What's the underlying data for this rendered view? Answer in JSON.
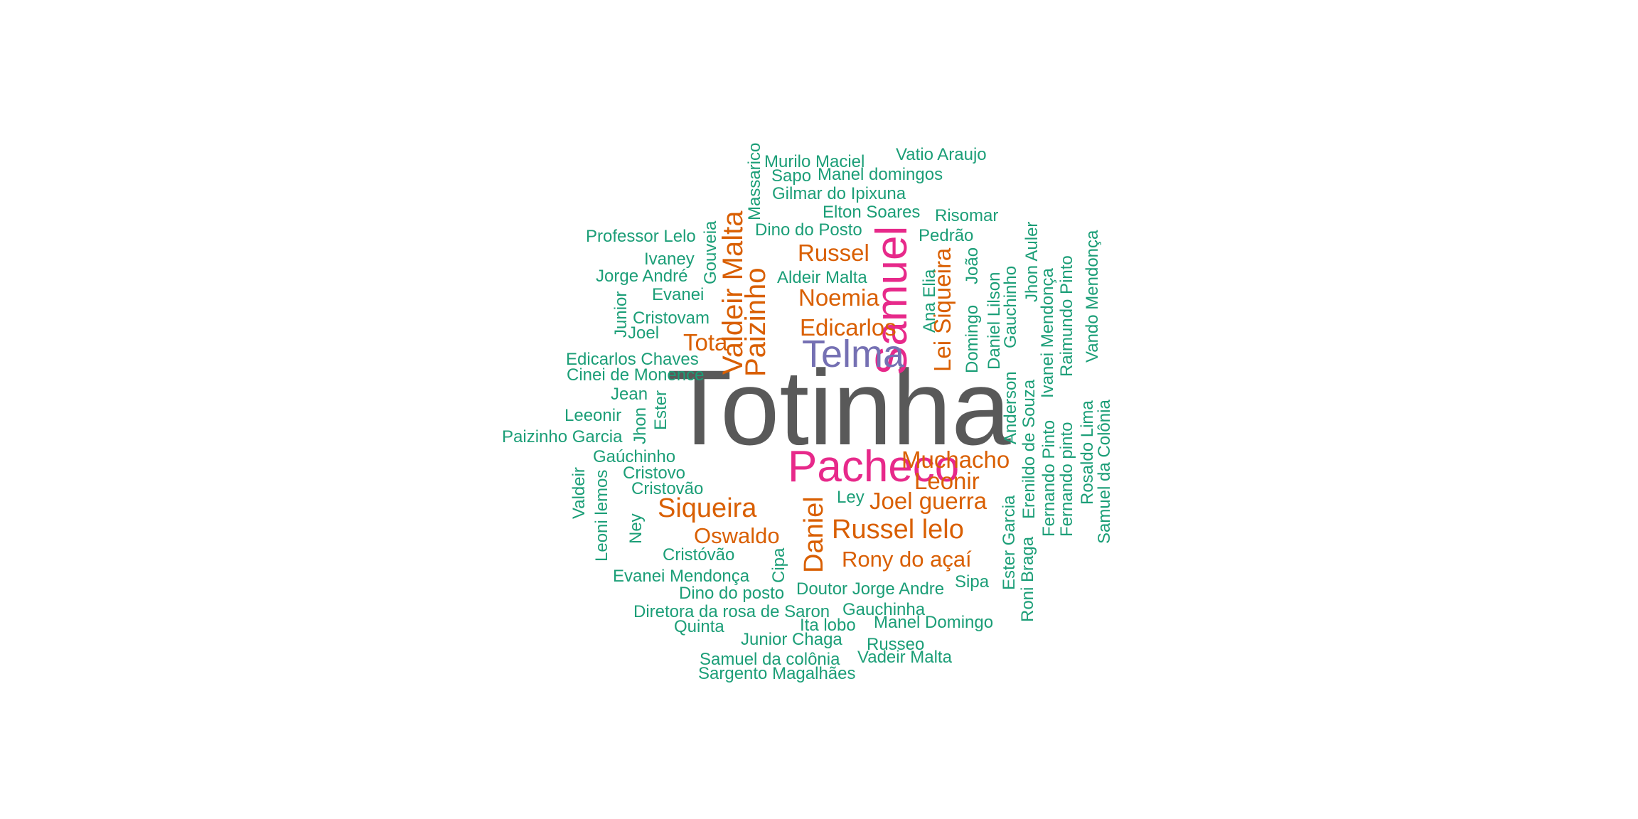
{
  "chart_data": {
    "type": "wordcloud",
    "colors": {
      "tier1": "#595959",
      "tier2": "#E7298A",
      "tier3": "#7570B3",
      "tier4": "#D95F02",
      "tier5": "#1B9E77"
    },
    "words": [
      {
        "text": "Totinha",
        "tier": "tier1"
      },
      {
        "text": "Pacheco",
        "tier": "tier2"
      },
      {
        "text": "Samuel",
        "tier": "tier2"
      },
      {
        "text": "Telma",
        "tier": "tier3"
      },
      {
        "text": "Valdeir Malta",
        "tier": "tier4"
      },
      {
        "text": "Paizinho",
        "tier": "tier4"
      },
      {
        "text": "Russel",
        "tier": "tier4"
      },
      {
        "text": "Noemia",
        "tier": "tier4"
      },
      {
        "text": "Edicarlos",
        "tier": "tier4"
      },
      {
        "text": "Tota",
        "tier": "tier4"
      },
      {
        "text": "Lei Siqueira",
        "tier": "tier4"
      },
      {
        "text": "Muchacho",
        "tier": "tier4"
      },
      {
        "text": "Leonir",
        "tier": "tier4"
      },
      {
        "text": "Joel guerra",
        "tier": "tier4"
      },
      {
        "text": "Siqueira",
        "tier": "tier4"
      },
      {
        "text": "Daniel",
        "tier": "tier4"
      },
      {
        "text": "Russel lelo",
        "tier": "tier4"
      },
      {
        "text": "Oswaldo",
        "tier": "tier4"
      },
      {
        "text": "Rony do açaí",
        "tier": "tier4"
      },
      {
        "text": "Vatio Araujo",
        "tier": "tier5"
      },
      {
        "text": "Murilo Maciel",
        "tier": "tier5"
      },
      {
        "text": "Massarico",
        "tier": "tier5"
      },
      {
        "text": "Sapo",
        "tier": "tier5"
      },
      {
        "text": "Manel domingos",
        "tier": "tier5"
      },
      {
        "text": "Gilmar do Ipixuna",
        "tier": "tier5"
      },
      {
        "text": "Elton Soares",
        "tier": "tier5"
      },
      {
        "text": "Risomar",
        "tier": "tier5"
      },
      {
        "text": "Dino do Posto",
        "tier": "tier5"
      },
      {
        "text": "Pedrão",
        "tier": "tier5"
      },
      {
        "text": "Professor Lelo",
        "tier": "tier5"
      },
      {
        "text": "Gouveia",
        "tier": "tier5"
      },
      {
        "text": "Ivaney",
        "tier": "tier5"
      },
      {
        "text": "Aldeir Malta",
        "tier": "tier5"
      },
      {
        "text": "Jorge André",
        "tier": "tier5"
      },
      {
        "text": "Evanei",
        "tier": "tier5"
      },
      {
        "text": "Junior",
        "tier": "tier5"
      },
      {
        "text": "Cristovam",
        "tier": "tier5"
      },
      {
        "text": "Joel",
        "tier": "tier5"
      },
      {
        "text": "Edicarlos Chaves",
        "tier": "tier5"
      },
      {
        "text": "Cinei de Monence",
        "tier": "tier5"
      },
      {
        "text": "Jean",
        "tier": "tier5"
      },
      {
        "text": "Ester",
        "tier": "tier5"
      },
      {
        "text": "Leeonir",
        "tier": "tier5"
      },
      {
        "text": "Jhon",
        "tier": "tier5"
      },
      {
        "text": "Paizinho Garcia",
        "tier": "tier5"
      },
      {
        "text": "Gaúchinho",
        "tier": "tier5"
      },
      {
        "text": "Cristovo",
        "tier": "tier5"
      },
      {
        "text": "Cristovão",
        "tier": "tier5"
      },
      {
        "text": "Valdeir",
        "tier": "tier5"
      },
      {
        "text": "Leoni lemos",
        "tier": "tier5"
      },
      {
        "text": "Ney",
        "tier": "tier5"
      },
      {
        "text": "Ley",
        "tier": "tier5"
      },
      {
        "text": "Cristóvão",
        "tier": "tier5"
      },
      {
        "text": "Cipa",
        "tier": "tier5"
      },
      {
        "text": "Evanei Mendonça",
        "tier": "tier5"
      },
      {
        "text": "Dino do posto",
        "tier": "tier5"
      },
      {
        "text": "Doutor Jorge Andre",
        "tier": "tier5"
      },
      {
        "text": "Sipa",
        "tier": "tier5"
      },
      {
        "text": "Diretora da rosa de Saron",
        "tier": "tier5"
      },
      {
        "text": "Gauchinha",
        "tier": "tier5"
      },
      {
        "text": "Quinta",
        "tier": "tier5"
      },
      {
        "text": "Ita lobo",
        "tier": "tier5"
      },
      {
        "text": "Manel Domingo",
        "tier": "tier5"
      },
      {
        "text": "Junior Chaga",
        "tier": "tier5"
      },
      {
        "text": "Russeo",
        "tier": "tier5"
      },
      {
        "text": "Samuel da colônia",
        "tier": "tier5"
      },
      {
        "text": "Vadeir Malta",
        "tier": "tier5"
      },
      {
        "text": "Sargento Magalhães",
        "tier": "tier5"
      },
      {
        "text": "Ana Elia",
        "tier": "tier5"
      },
      {
        "text": "Domingo",
        "tier": "tier5"
      },
      {
        "text": "João",
        "tier": "tier5"
      },
      {
        "text": "Daniel Lilson",
        "tier": "tier5"
      },
      {
        "text": "Gauchinho",
        "tier": "tier5"
      },
      {
        "text": "Anderson",
        "tier": "tier5"
      },
      {
        "text": "Erenildo de Souza",
        "tier": "tier5"
      },
      {
        "text": "Jhon Auler",
        "tier": "tier5"
      },
      {
        "text": "Ivanei Mendonça",
        "tier": "tier5"
      },
      {
        "text": "Fernando Pinto",
        "tier": "tier5"
      },
      {
        "text": "Fernando pinto",
        "tier": "tier5"
      },
      {
        "text": "Raimundo Pinto",
        "tier": "tier5"
      },
      {
        "text": "Vando Mendonça",
        "tier": "tier5"
      },
      {
        "text": "Rosaldo Lima",
        "tier": "tier5"
      },
      {
        "text": "Samuel da Colônia",
        "tier": "tier5"
      },
      {
        "text": "Ester Garcia",
        "tier": "tier5"
      },
      {
        "text": "Roni Braga",
        "tier": "tier5"
      }
    ]
  }
}
